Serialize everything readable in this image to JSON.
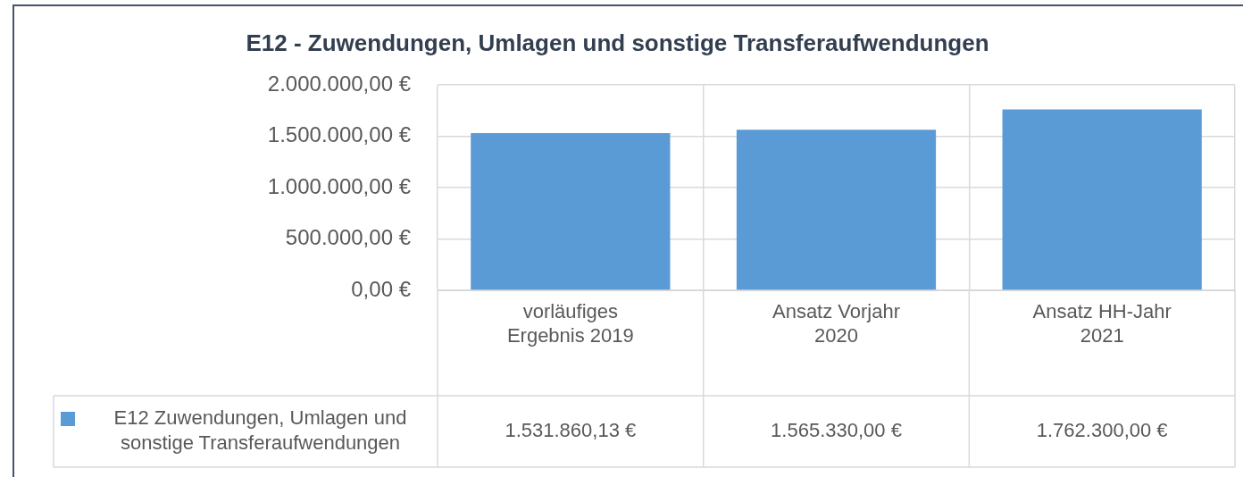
{
  "chart_data": {
    "type": "bar",
    "title": "E12 - Zuwendungen, Umlagen und sonstige Transferaufwendungen",
    "categories": [
      "vorläufiges Ergebnis 2019",
      "Ansatz Vorjahr 2020",
      "Ansatz HH-Jahr 2021"
    ],
    "series": [
      {
        "name": "E12 Zuwendungen, Umlagen und sonstige Transferaufwendungen",
        "color": "#5b9bd5",
        "values": [
          1531860.13,
          1565330.0,
          1762300.0
        ]
      }
    ],
    "ylim": [
      0,
      2000000
    ],
    "yticks": [
      {
        "value": 0,
        "label": "0,00 €"
      },
      {
        "value": 500000,
        "label": "500.000,00 €"
      },
      {
        "value": 1000000,
        "label": "1.000.000,00 €"
      },
      {
        "value": 1500000,
        "label": "1.500.000,00 €"
      },
      {
        "value": 2000000,
        "label": "2.000.000,00 €"
      }
    ],
    "value_labels": [
      "1.531.860,13 €",
      "1.565.330,00 €",
      "1.762.300,00 €"
    ],
    "grid": true,
    "legend": "bottom left"
  }
}
